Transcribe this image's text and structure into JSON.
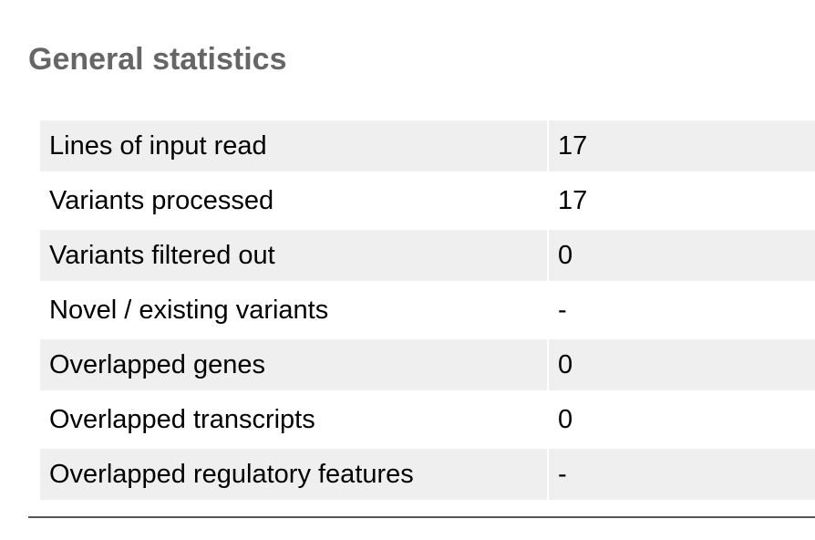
{
  "cutoff_text": "",
  "section": {
    "title": "General statistics"
  },
  "stats": [
    {
      "label": "Lines of input read",
      "value": "17"
    },
    {
      "label": "Variants processed",
      "value": "17"
    },
    {
      "label": "Variants filtered out",
      "value": "0"
    },
    {
      "label": "Novel / existing variants",
      "value": "-"
    },
    {
      "label": "Overlapped genes",
      "value": "0"
    },
    {
      "label": "Overlapped transcripts",
      "value": "0"
    },
    {
      "label": "Overlapped regulatory features",
      "value": "-"
    }
  ]
}
